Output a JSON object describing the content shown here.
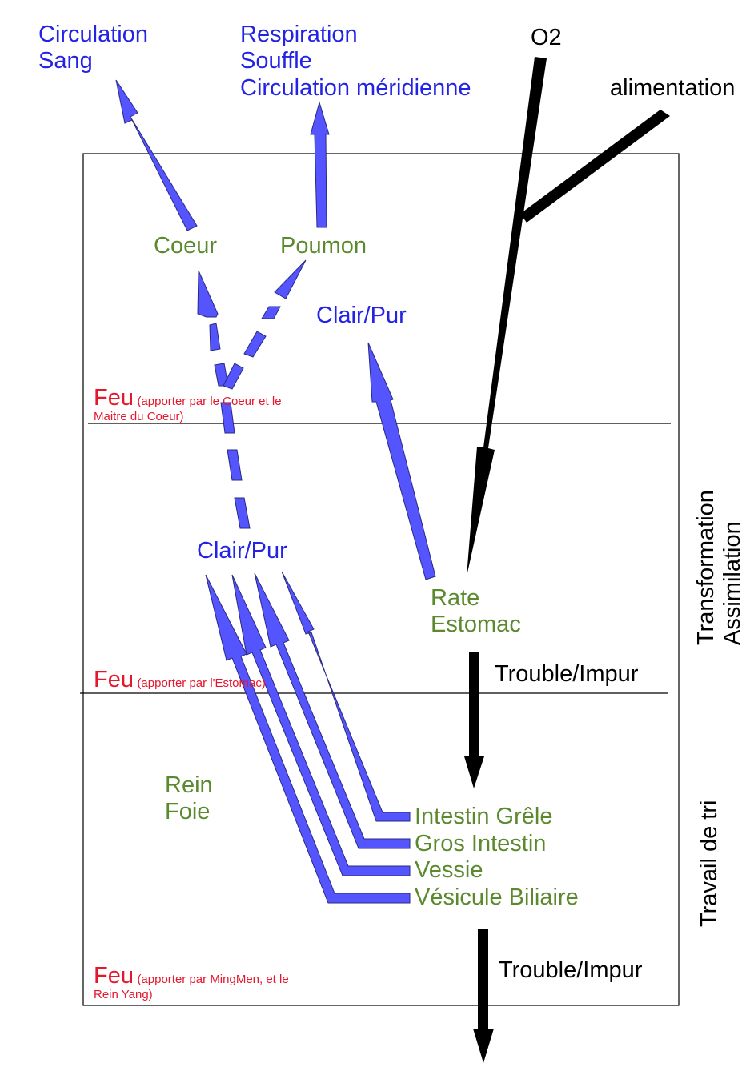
{
  "top": {
    "circulation": [
      "Circulation",
      "Sang"
    ],
    "respiration": [
      "Respiration",
      "Souffle",
      "Circulation méridienne"
    ],
    "o2": "O2",
    "alimentation": "alimentation"
  },
  "organs": {
    "coeur": "Coeur",
    "poumon": "Poumon",
    "rate_estomac": [
      "Rate",
      "Estomac"
    ],
    "rein_foie": [
      "Rein",
      "Foie"
    ],
    "intestin_grele": "Intestin Grêle",
    "gros_intestin": "Gros Intestin",
    "vessie": "Vessie",
    "vesicule": "Vésicule Biliaire"
  },
  "flows": {
    "clair_pur_upper": "Clair/Pur",
    "clair_pur_lower": "Clair/Pur",
    "trouble_upper": "Trouble/Impur",
    "trouble_lower": "Trouble/Impur"
  },
  "feu": {
    "f1_big": "Feu",
    "f1_small_line1": "(apporter par le Coeur et le",
    "f1_small_line2": "Maitre du Coeur)",
    "f2_big": "Feu",
    "f2_small": "(apporter par l'Estomac)",
    "f3_big": "Feu",
    "f3_small_line1": "(apporter par MingMen, et le",
    "f3_small_line2": "Rein Yang)"
  },
  "side": {
    "transformation": [
      "Transformation",
      "Assimilation"
    ],
    "tri": "Travail de tri"
  },
  "colors": {
    "blue_text": "#2323e6",
    "arrow_fill": "#5555ff",
    "green_text": "#5b8a2e",
    "feu_red": "#e6162b"
  }
}
